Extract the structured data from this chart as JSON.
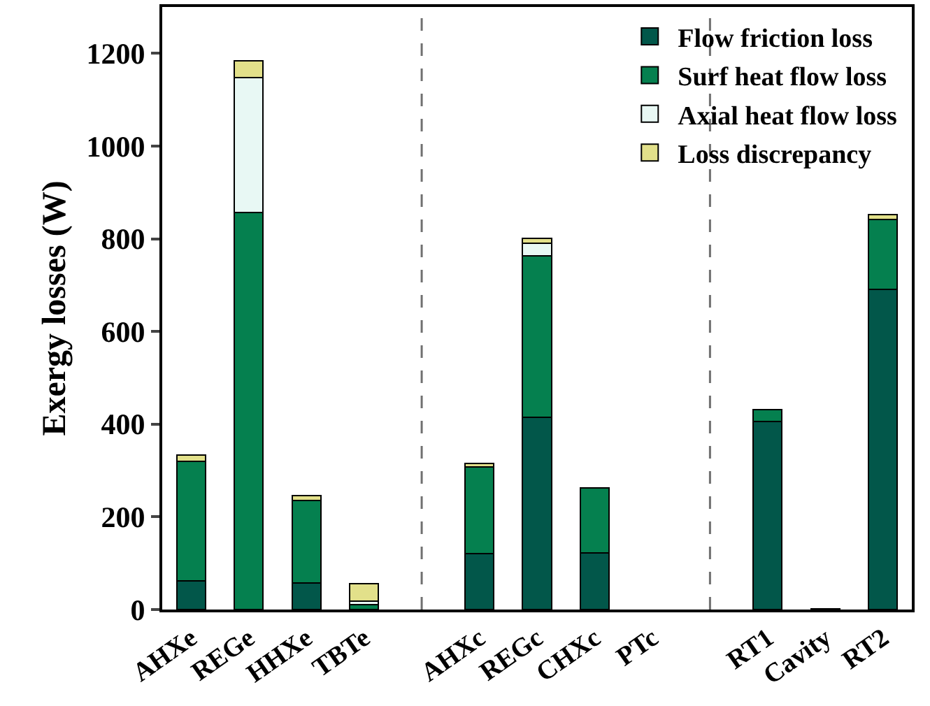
{
  "chart_data": {
    "type": "bar",
    "stacked": true,
    "ylabel": "Exergy losses (W)",
    "categories": [
      "AHXe",
      "REGe",
      "HHXe",
      "TBTe",
      null,
      "AHXc",
      "REGc",
      "CHXc",
      "PTc",
      null,
      "RT1",
      "Cavity",
      "RT2"
    ],
    "series": [
      {
        "name": "Flow friction loss",
        "color": "#02574a",
        "values": [
          62,
          null,
          57,
          null,
          null,
          121,
          414,
          122,
          null,
          null,
          405,
          2,
          691
        ]
      },
      {
        "name": "Surf heat flow loss",
        "color": "#05804f",
        "values": [
          258,
          856,
          178,
          10,
          null,
          186,
          349,
          141,
          null,
          null,
          26,
          null,
          151
        ]
      },
      {
        "name": "Axial heat flow loss",
        "color": "#e8f8f4",
        "values": [
          null,
          292,
          null,
          8,
          null,
          null,
          28,
          null,
          null,
          null,
          null,
          null,
          null
        ]
      },
      {
        "name": "Loss discrepancy",
        "color": "#e2e08a",
        "values": [
          13,
          36,
          11,
          38,
          null,
          8,
          10,
          null,
          null,
          null,
          null,
          null,
          10
        ]
      }
    ],
    "ylim": [
      0,
      1300
    ],
    "yticks": [
      0,
      200,
      400,
      600,
      800,
      1000,
      1200
    ],
    "grid": false,
    "legend": "top right"
  }
}
